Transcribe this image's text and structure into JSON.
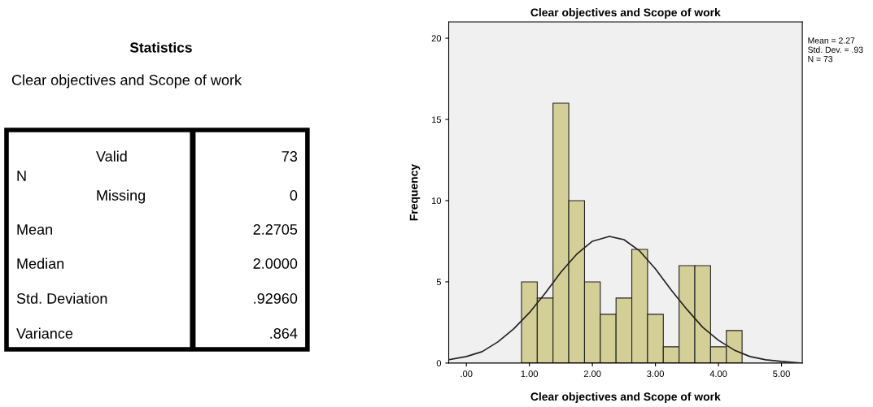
{
  "chart_data": [
    {
      "type": "other",
      "title": "Statistics",
      "subtitle": "Clear objectives and Scope of work",
      "annotations": [
        "N",
        "Valid",
        "73",
        "Missing",
        "0",
        "Mean",
        "2.2705",
        "Median",
        "2.0000",
        "Std. Deviation",
        ".92960",
        "Variance",
        ".864"
      ]
    },
    {
      "type": "histogram",
      "title": "Clear objectives and Scope of work",
      "xlabel": "Clear objectives and Scope of work",
      "ylabel": "Frequency",
      "bins": [
        0.875,
        1.125,
        1.375,
        1.625,
        1.875,
        2.125,
        2.375,
        2.625,
        2.875,
        3.125,
        3.375,
        3.625,
        3.875,
        4.125,
        4.375
      ],
      "values": [
        5,
        4,
        16,
        10,
        5,
        3,
        4,
        7,
        3,
        1,
        6,
        6,
        1,
        2
      ],
      "color": "#d3cf97",
      "series": [
        {
          "type": "line",
          "color": "#222222",
          "x": [
            -0.28,
            0,
            0.25,
            0.5,
            0.75,
            1.0,
            1.25,
            1.5,
            1.75,
            2.0,
            2.27,
            2.5,
            2.75,
            3.0,
            3.25,
            3.5,
            3.75,
            4.0,
            4.25,
            4.5,
            4.75,
            5.0,
            5.33
          ],
          "values": [
            0.2,
            0.4,
            0.7,
            1.3,
            2.1,
            3.1,
            4.3,
            5.6,
            6.7,
            7.5,
            7.8,
            7.6,
            6.9,
            5.8,
            4.5,
            3.3,
            2.2,
            1.4,
            0.8,
            0.4,
            0.2,
            0.1,
            0.0
          ]
        }
      ],
      "xlim": [
        -0.28,
        5.33
      ],
      "ylim": [
        0,
        21
      ],
      "xticks": [
        {
          "value": 0,
          "label": ".00"
        },
        {
          "value": 1,
          "label": "1.00"
        },
        {
          "value": 2,
          "label": "2.00"
        },
        {
          "value": 3,
          "label": "3.00"
        },
        {
          "value": 4,
          "label": "4.00"
        },
        {
          "value": 5,
          "label": "5.00"
        }
      ],
      "yticks": [
        0,
        5,
        10,
        15,
        20
      ],
      "grid": false,
      "legend": false,
      "annotations": [
        "Mean = 2.27",
        "Std. Dev. = .93",
        "N = 73"
      ]
    }
  ]
}
